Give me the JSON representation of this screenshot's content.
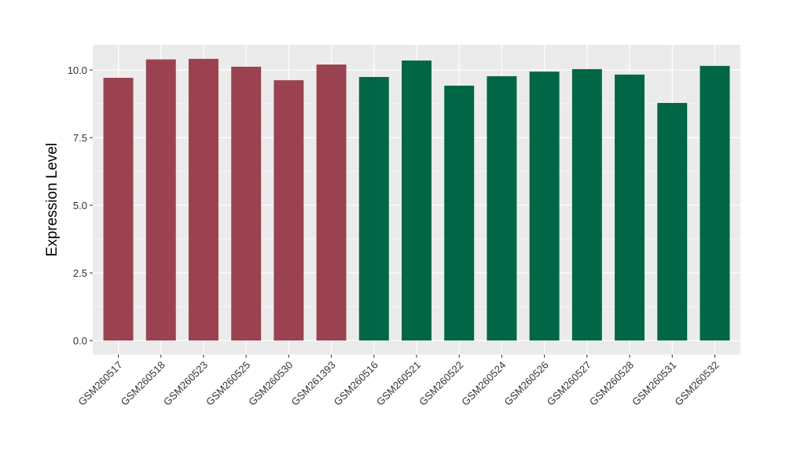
{
  "chart_data": {
    "type": "bar",
    "title": "",
    "xlabel": "",
    "ylabel": "Expression Level",
    "ylim": [
      -0.52,
      10.93
    ],
    "yticks": [
      "0.0",
      "2.5",
      "5.0",
      "7.5",
      "10.0"
    ],
    "grid": true,
    "categories": [
      "GSM260517",
      "GSM260518",
      "GSM260523",
      "GSM260525",
      "GSM260530",
      "GSM261393",
      "GSM260516",
      "GSM260521",
      "GSM260522",
      "GSM260524",
      "GSM260526",
      "GSM260527",
      "GSM260528",
      "GSM260531",
      "GSM260532"
    ],
    "values": [
      9.71,
      10.39,
      10.41,
      10.12,
      9.62,
      10.2,
      9.74,
      10.35,
      9.42,
      9.77,
      9.94,
      10.03,
      9.83,
      8.78,
      10.15
    ],
    "groups": [
      "a",
      "a",
      "a",
      "a",
      "a",
      "a",
      "b",
      "b",
      "b",
      "b",
      "b",
      "b",
      "b",
      "b",
      "b"
    ],
    "colors": {
      "a": "#9A4250",
      "b": "#006645"
    },
    "panel_color": "#EBEBEB",
    "grid_color": "#FFFFFF"
  }
}
